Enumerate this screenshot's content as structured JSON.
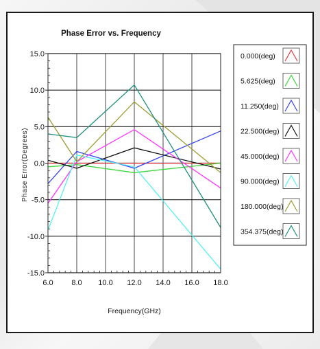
{
  "chart_data": {
    "type": "line",
    "title": "Phase Error vs. Frequency",
    "xlabel": "Frequency(GHz)",
    "ylabel": "Phase Error(Degrees)",
    "xlim": [
      6,
      18
    ],
    "ylim": [
      -15,
      15
    ],
    "xticks": [
      "6.0",
      "8.0",
      "10.0",
      "12.0",
      "14.0",
      "16.0",
      "18.0"
    ],
    "yticks": [
      "15.0",
      "10.0",
      "5.0",
      "0.0",
      "-5.0",
      "-10.0",
      "-15.0"
    ],
    "x": [
      6,
      8,
      12,
      18
    ],
    "legend_position": "right",
    "series": [
      {
        "name": "0.000(deg)",
        "color": "#e8383d",
        "values": [
          0.0,
          0.0,
          0.0,
          0.0
        ]
      },
      {
        "name": "5.625(deg)",
        "color": "#3cd43c",
        "values": [
          -0.5,
          -0.2,
          -1.3,
          0.0
        ]
      },
      {
        "name": "11.250(deg)",
        "color": "#3344ee",
        "values": [
          -2.8,
          1.6,
          -0.7,
          4.4
        ]
      },
      {
        "name": "22.500(deg)",
        "color": "#111111",
        "values": [
          0.4,
          -0.7,
          2.1,
          -0.8
        ]
      },
      {
        "name": "45.000(deg)",
        "color": "#ff33ff",
        "values": [
          -5.5,
          0.2,
          4.6,
          -3.4
        ]
      },
      {
        "name": "90.000(deg)",
        "color": "#55f0f0",
        "values": [
          -9.2,
          1.1,
          -0.5,
          -14.5
        ]
      },
      {
        "name": "180.000(deg)",
        "color": "#9c9c33",
        "values": [
          6.3,
          0.2,
          8.4,
          -1.3
        ]
      },
      {
        "name": "354.375(deg)",
        "color": "#1f8f7c",
        "values": [
          4.0,
          3.5,
          10.7,
          -8.8
        ]
      }
    ]
  }
}
